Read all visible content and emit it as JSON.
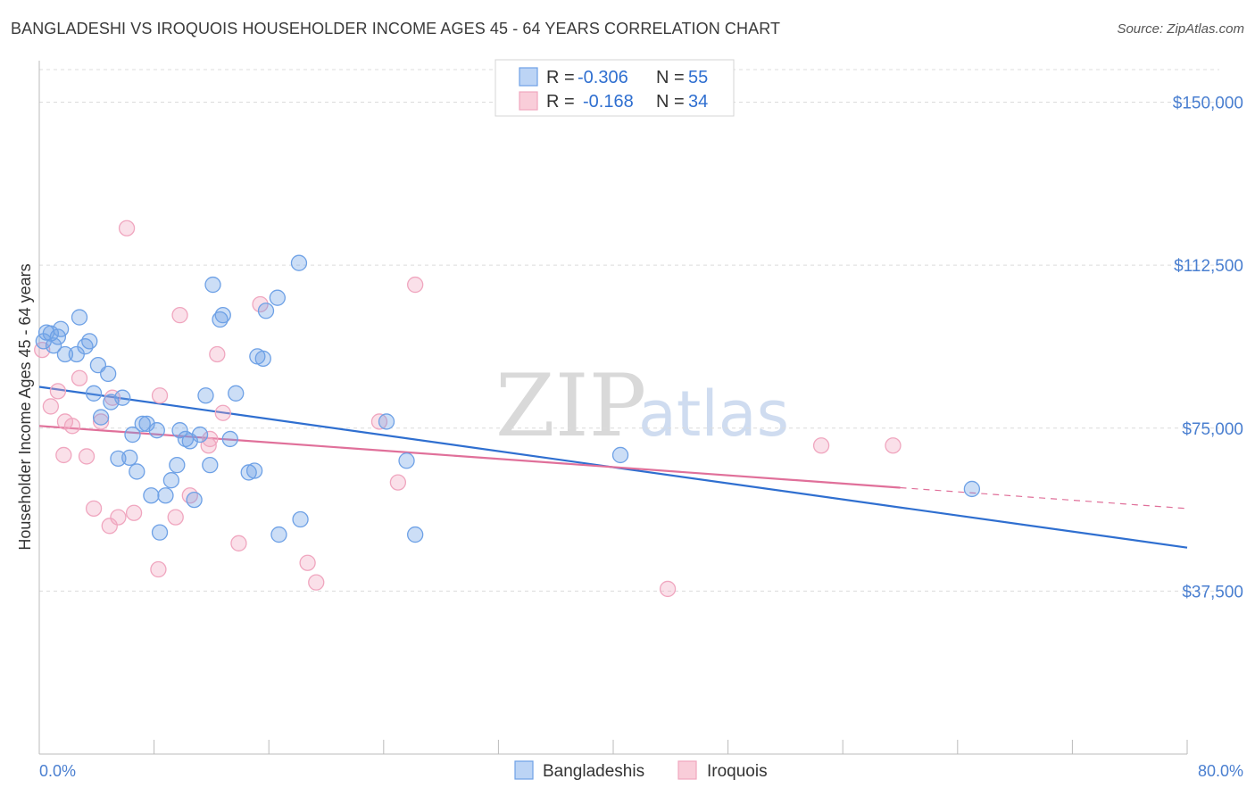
{
  "title": "BANGLADESHI VS IROQUOIS HOUSEHOLDER INCOME AGES 45 - 64 YEARS CORRELATION CHART",
  "source": "Source: ZipAtlas.com",
  "watermark": {
    "zip": "ZIP",
    "atlas": "atlas"
  },
  "colors": {
    "blue": "#6ea1e6",
    "blue_line": "#2f6fd0",
    "pink": "#f0a6bf",
    "pink_line": "#e0709a"
  },
  "legend": {
    "rows": [
      {
        "r_label": "R =",
        "r_value": "-0.306",
        "n_label": "N =",
        "n_value": "55"
      },
      {
        "r_label": "R =",
        "r_value": "-0.168",
        "n_label": "N =",
        "n_value": "34"
      }
    ]
  },
  "chart_data": {
    "type": "scatter",
    "title": "BANGLADESHI VS IROQUOIS HOUSEHOLDER INCOME AGES 45 - 64 YEARS CORRELATION CHART",
    "xlabel": "",
    "ylabel": "Householder Income Ages 45 - 64 years",
    "xlim": [
      0,
      80
    ],
    "ylim": [
      0,
      157500
    ],
    "x_tick_labels": [
      "0.0%",
      "80.0%"
    ],
    "y_ticks": [
      37500,
      75000,
      112500,
      150000
    ],
    "y_tick_labels": [
      "$37,500",
      "$75,000",
      "$112,500",
      "$150,000"
    ],
    "grid": true,
    "legend_position": "top-center",
    "series": [
      {
        "name": "Bangladeshis",
        "color": "#6ea1e6",
        "trend": {
          "x": [
            0,
            80
          ],
          "y": [
            84500,
            47500
          ]
        },
        "points": [
          [
            0.3,
            95000
          ],
          [
            0.5,
            97000
          ],
          [
            0.8,
            96800
          ],
          [
            1.0,
            94000
          ],
          [
            1.3,
            96000
          ],
          [
            1.5,
            97800
          ],
          [
            1.8,
            92000
          ],
          [
            2.6,
            92000
          ],
          [
            2.8,
            100500
          ],
          [
            3.2,
            93800
          ],
          [
            3.5,
            95000
          ],
          [
            3.8,
            83000
          ],
          [
            4.1,
            89500
          ],
          [
            4.3,
            77500
          ],
          [
            4.8,
            87500
          ],
          [
            5.0,
            81000
          ],
          [
            5.5,
            68000
          ],
          [
            5.8,
            82000
          ],
          [
            6.3,
            68200
          ],
          [
            6.5,
            73500
          ],
          [
            6.8,
            65000
          ],
          [
            7.2,
            76000
          ],
          [
            7.5,
            76000
          ],
          [
            7.8,
            59500
          ],
          [
            8.2,
            74500
          ],
          [
            8.4,
            51000
          ],
          [
            8.8,
            59500
          ],
          [
            9.2,
            63000
          ],
          [
            9.6,
            66500
          ],
          [
            9.8,
            74500
          ],
          [
            10.2,
            72500
          ],
          [
            10.5,
            72000
          ],
          [
            10.8,
            58500
          ],
          [
            11.2,
            73500
          ],
          [
            11.6,
            82500
          ],
          [
            11.9,
            66500
          ],
          [
            12.1,
            108000
          ],
          [
            12.6,
            100000
          ],
          [
            12.8,
            101000
          ],
          [
            13.3,
            72500
          ],
          [
            13.7,
            83000
          ],
          [
            14.6,
            64800
          ],
          [
            15.0,
            65200
          ],
          [
            15.2,
            91500
          ],
          [
            15.6,
            91000
          ],
          [
            15.8,
            102000
          ],
          [
            16.6,
            105000
          ],
          [
            16.7,
            50500
          ],
          [
            18.1,
            113000
          ],
          [
            18.2,
            54000
          ],
          [
            24.2,
            76500
          ],
          [
            25.6,
            67500
          ],
          [
            26.2,
            50500
          ],
          [
            40.5,
            68800
          ],
          [
            65.0,
            61000
          ]
        ]
      },
      {
        "name": "Iroquois",
        "color": "#f0a6bf",
        "trend": {
          "x": [
            0,
            60
          ],
          "y": [
            75500,
            61300
          ]
        },
        "trend_extension": {
          "x": [
            60,
            80
          ],
          "y": [
            61300,
            56500
          ]
        },
        "points": [
          [
            0.2,
            93000
          ],
          [
            0.8,
            80000
          ],
          [
            1.3,
            83500
          ],
          [
            1.7,
            68800
          ],
          [
            1.8,
            76500
          ],
          [
            2.3,
            75500
          ],
          [
            2.8,
            86500
          ],
          [
            3.3,
            68500
          ],
          [
            3.8,
            56500
          ],
          [
            4.3,
            76500
          ],
          [
            4.9,
            52500
          ],
          [
            5.1,
            82000
          ],
          [
            5.5,
            54500
          ],
          [
            6.6,
            55500
          ],
          [
            6.1,
            121000
          ],
          [
            8.3,
            42500
          ],
          [
            8.4,
            82500
          ],
          [
            9.5,
            54500
          ],
          [
            9.8,
            101000
          ],
          [
            10.5,
            59500
          ],
          [
            11.8,
            71000
          ],
          [
            11.9,
            72500
          ],
          [
            12.4,
            92000
          ],
          [
            12.8,
            78500
          ],
          [
            13.9,
            48500
          ],
          [
            15.4,
            103500
          ],
          [
            18.7,
            44000
          ],
          [
            19.3,
            39500
          ],
          [
            23.7,
            76500
          ],
          [
            25.0,
            62500
          ],
          [
            26.2,
            108000
          ],
          [
            43.8,
            38000
          ],
          [
            54.5,
            71000
          ],
          [
            59.5,
            71000
          ]
        ]
      }
    ]
  }
}
